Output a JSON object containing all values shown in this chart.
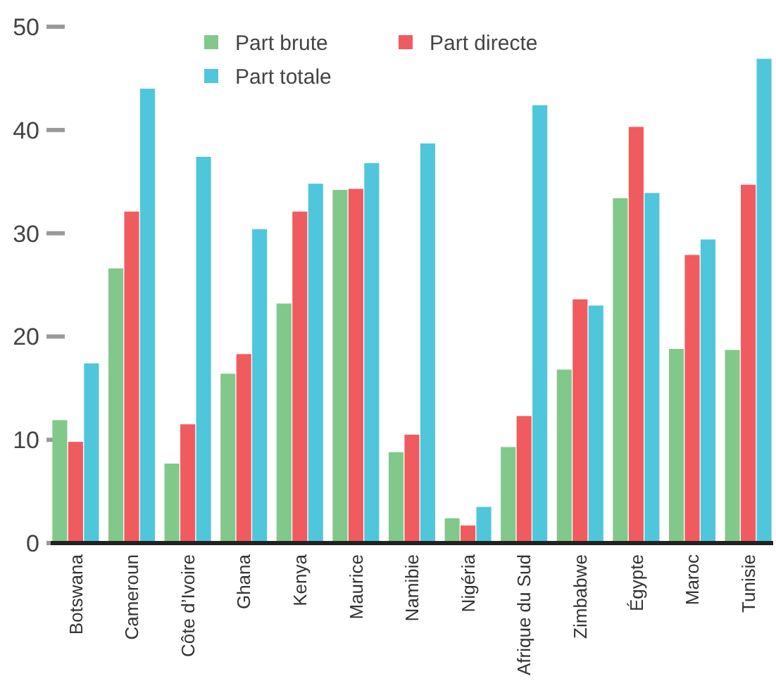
{
  "chart_data": {
    "type": "bar",
    "categories": [
      "Botswana",
      "Cameroun",
      "Côte d’Ivoire",
      "Ghana",
      "Kenya",
      "Maurice",
      "Namibie",
      "Nigéria",
      "Afrique du Sud",
      "Zimbabwe",
      "Égypte",
      "Maroc",
      "Tunisie"
    ],
    "series": [
      {
        "name": "Part brute",
        "color": "#82c88b",
        "values": [
          11.9,
          26.6,
          7.7,
          16.4,
          23.2,
          34.2,
          8.8,
          2.4,
          9.3,
          16.8,
          33.4,
          18.8,
          18.7
        ]
      },
      {
        "name": "Part directe",
        "color": "#f05b5f",
        "values": [
          9.8,
          32.1,
          11.5,
          18.3,
          32.1,
          34.3,
          10.5,
          1.7,
          12.3,
          23.6,
          40.3,
          27.9,
          34.7
        ]
      },
      {
        "name": "Part totale",
        "color": "#4fc6dc",
        "values": [
          17.4,
          44.0,
          37.4,
          30.4,
          34.8,
          36.8,
          38.7,
          3.5,
          42.4,
          23.0,
          33.9,
          29.4,
          46.9
        ]
      }
    ],
    "ylim": [
      0,
      50
    ],
    "yticks": [
      0,
      10,
      20,
      30,
      40,
      50
    ],
    "grid": false,
    "legend": "top"
  }
}
